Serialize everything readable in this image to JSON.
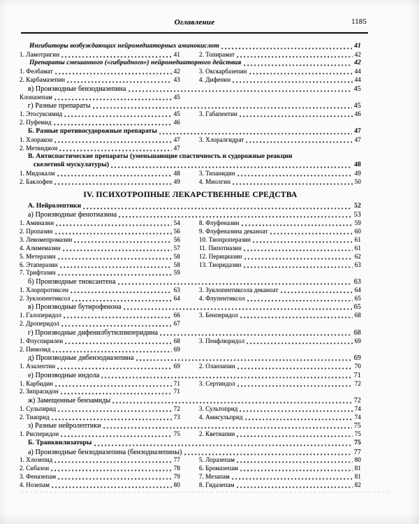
{
  "header": {
    "title": "Оглавление",
    "page_number": "1185"
  },
  "toc": {
    "rows": [
      {
        "kind": "h-italic",
        "label": "Ингибиторы возбуждающих нейромедиаторных аминокислот",
        "num": "41"
      },
      {
        "kind": "two",
        "left": {
          "label": "1. Ламотригин",
          "num": "41"
        },
        "right": {
          "label": "2. Топирамат",
          "num": "42"
        }
      },
      {
        "kind": "h-italic",
        "label": "Препараты смешанного («гибридного») нейромедиаторного действия",
        "num": "42"
      },
      {
        "kind": "two",
        "left": {
          "label": "1. Фелбамат",
          "num": "42"
        },
        "right": {
          "label": "3. Окскарбазепин",
          "num": "44"
        }
      },
      {
        "kind": "two",
        "left": {
          "label": "2. Карбамазепин",
          "num": "43"
        },
        "right": {
          "label": "4. Дифенин",
          "num": "44"
        }
      },
      {
        "kind": "h-sub",
        "label": "в) Производные бензодиазепина",
        "num": "45"
      },
      {
        "kind": "two",
        "left": {
          "label": "Клоназепам",
          "num": "45"
        },
        "right": null
      },
      {
        "kind": "h-sub",
        "label": "г) Разные препараты",
        "num": "45"
      },
      {
        "kind": "two",
        "left": {
          "label": "1. Этосуксимид",
          "num": "45"
        },
        "right": {
          "label": "3. Габапентин",
          "num": "46"
        }
      },
      {
        "kind": "two",
        "left": {
          "label": "2. Пуфемид",
          "num": "46"
        },
        "right": null
      },
      {
        "kind": "h-bold",
        "label": "Б. Разные противосудорожные препараты",
        "num": "47"
      },
      {
        "kind": "two",
        "left": {
          "label": "1. Хлоракон",
          "num": "47"
        },
        "right": {
          "label": "3. Хлоралгидрат",
          "num": "47"
        }
      },
      {
        "kind": "two",
        "left": {
          "label": "2. Метиндион",
          "num": "47"
        },
        "right": null
      },
      {
        "kind": "h-plainbold",
        "label": "В. Антиспастические препараты (уменьшающие спастичность и судорожные реакции"
      },
      {
        "kind": "h-boldcont",
        "label": "скелетной мускулатуры)",
        "num": "48"
      },
      {
        "kind": "two",
        "left": {
          "label": "1. Мидокалм",
          "num": "48"
        },
        "right": {
          "label": "3. Тизанидин",
          "num": "49"
        }
      },
      {
        "kind": "two",
        "left": {
          "label": "2. Баклофен",
          "num": "49"
        },
        "right": {
          "label": "4. Миолгин",
          "num": "50"
        }
      },
      {
        "kind": "h-center",
        "label": "IV. ПСИХОТРОПНЫЕ ЛЕКАРСТВЕННЫЕ СРЕДСТВА"
      },
      {
        "kind": "h-bold",
        "label": "А. Нейролептики",
        "num": "52"
      },
      {
        "kind": "h-sub",
        "label": "а) Производные фенотиазина",
        "num": "53"
      },
      {
        "kind": "two",
        "left": {
          "label": "1. Аминазин",
          "num": "54"
        },
        "right": {
          "label": "8. Флуфеназин",
          "num": "59"
        }
      },
      {
        "kind": "two",
        "left": {
          "label": "2. Пропазин",
          "num": "56"
        },
        "right": {
          "label": "9. Флуфеназина деканоат",
          "num": "60"
        }
      },
      {
        "kind": "two",
        "left": {
          "label": "3. Левомепромазин",
          "num": "56"
        },
        "right": {
          "label": "10. Тиопроперазин",
          "num": "61"
        }
      },
      {
        "kind": "two",
        "left": {
          "label": "4. Алимемазин",
          "num": "57"
        },
        "right": {
          "label": "11. Пипотиазин",
          "num": "61"
        }
      },
      {
        "kind": "two",
        "left": {
          "label": "5. Метеразин",
          "num": "58"
        },
        "right": {
          "label": "12. Перициазин",
          "num": "62"
        }
      },
      {
        "kind": "two",
        "left": {
          "label": "6. Этаперазин",
          "num": "58"
        },
        "right": {
          "label": "13. Тиоридазин",
          "num": "63"
        }
      },
      {
        "kind": "two",
        "left": {
          "label": "7. Трифтазин",
          "num": "59"
        },
        "right": null
      },
      {
        "kind": "h-sub",
        "label": "б) Производные тиоксантена",
        "num": "63"
      },
      {
        "kind": "two",
        "left": {
          "label": "1. Хлорпротиксен",
          "num": "63"
        },
        "right": {
          "label": "3. Зуклопентиксола деканоат",
          "num": "64"
        }
      },
      {
        "kind": "two",
        "left": {
          "label": "2. Зуклопентиксол",
          "num": "64"
        },
        "right": {
          "label": "4. Флупентиксол",
          "num": "65"
        }
      },
      {
        "kind": "h-sub",
        "label": "в) Производные бутирофенона",
        "num": "65"
      },
      {
        "kind": "two",
        "left": {
          "label": "1. Галоперидол",
          "num": "66"
        },
        "right": {
          "label": "3. Бенперидол",
          "num": "68"
        }
      },
      {
        "kind": "two",
        "left": {
          "label": "2. Дроперидол",
          "num": "67"
        },
        "right": null
      },
      {
        "kind": "h-sub",
        "label": "г) Производные дифенилбутилпиперидина",
        "num": "68"
      },
      {
        "kind": "two",
        "left": {
          "label": "1. Флуспирилен",
          "num": "68"
        },
        "right": {
          "label": "3. Пенфлюридол",
          "num": "69"
        }
      },
      {
        "kind": "two",
        "left": {
          "label": "2. Пимозид",
          "num": "69"
        },
        "right": null
      },
      {
        "kind": "h-sub",
        "label": "д) Производные дибензодиазепина",
        "num": "69"
      },
      {
        "kind": "two",
        "left": {
          "label": "1. Азалептин",
          "num": "69"
        },
        "right": {
          "label": "2. Оланзапин",
          "num": "70"
        }
      },
      {
        "kind": "h-sub",
        "label": "е) Производные индола",
        "num": "71"
      },
      {
        "kind": "two",
        "left": {
          "label": "1. Карбидин",
          "num": "71"
        },
        "right": {
          "label": "3. Сертиндол",
          "num": "72"
        }
      },
      {
        "kind": "two",
        "left": {
          "label": "2. Зипрасидон",
          "num": "71"
        },
        "right": null
      },
      {
        "kind": "h-sub",
        "label": "ж) Замещенные бензамиды",
        "num": "72"
      },
      {
        "kind": "two",
        "left": {
          "label": "1. Сульпирид",
          "num": "72"
        },
        "right": {
          "label": "3. Сультоприд",
          "num": "74"
        }
      },
      {
        "kind": "two",
        "left": {
          "label": "2. Тиаприд",
          "num": "73"
        },
        "right": {
          "label": "4. Амисульприд",
          "num": "74"
        }
      },
      {
        "kind": "h-sub",
        "label": "з) Разные нейролептики",
        "num": "75"
      },
      {
        "kind": "two",
        "left": {
          "label": "1. Рисперидон",
          "num": "75"
        },
        "right": {
          "label": "2. Кветиапин",
          "num": "75"
        }
      },
      {
        "kind": "h-bold",
        "label": "Б. Транквилизаторы",
        "num": "75"
      },
      {
        "kind": "h-sub",
        "label": "а) Производные бензодиазепина (бензодиазепины)",
        "num": "77"
      },
      {
        "kind": "two",
        "left": {
          "label": "1. Хлозепид",
          "num": "77"
        },
        "right": {
          "label": "5. Лоразепам",
          "num": "80"
        }
      },
      {
        "kind": "two",
        "left": {
          "label": "2. Сибазон",
          "num": "78"
        },
        "right": {
          "label": "6. Бромазепам",
          "num": "81"
        }
      },
      {
        "kind": "two",
        "left": {
          "label": "3. Феназепам",
          "num": "79"
        },
        "right": {
          "label": "7. Мезапам",
          "num": "81"
        }
      },
      {
        "kind": "two",
        "left": {
          "label": "4. Нозепам",
          "num": "80"
        },
        "right": {
          "label": "8. Гидазепам",
          "num": "82"
        }
      }
    ]
  }
}
